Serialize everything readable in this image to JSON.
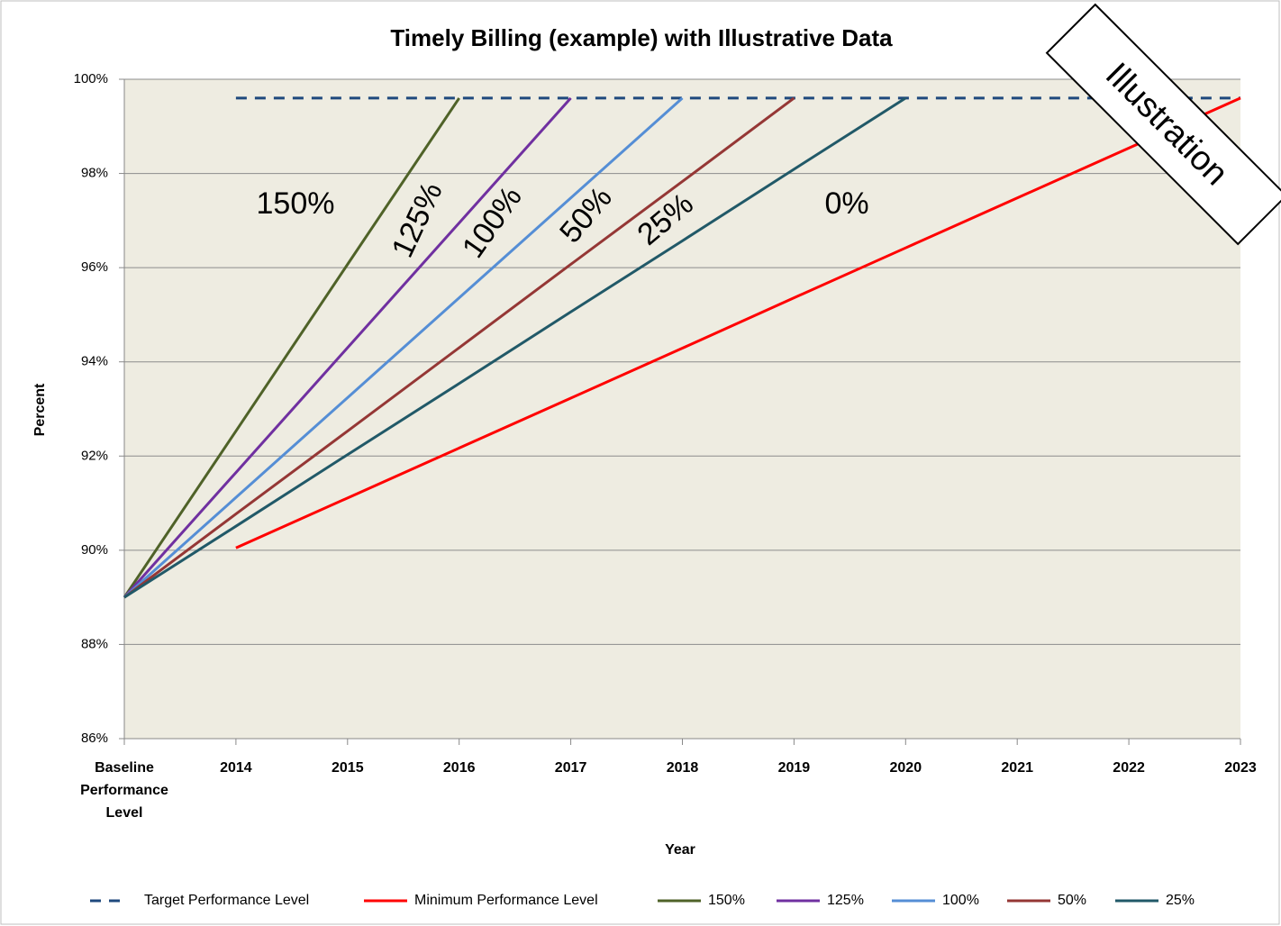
{
  "chart_data": {
    "type": "line",
    "title": "Timely Billing (example) with Illustrative Data",
    "xlabel": "Year",
    "ylabel": "Percent",
    "categories": [
      "Baseline Performance Level",
      "2014",
      "2015",
      "2016",
      "2017",
      "2018",
      "2019",
      "2020",
      "2021",
      "2022",
      "2023"
    ],
    "ylim": [
      86,
      100
    ],
    "yticks": [
      {
        "value": 86,
        "label": "86%"
      },
      {
        "value": 88,
        "label": "88%"
      },
      {
        "value": 90,
        "label": "90%"
      },
      {
        "value": 92,
        "label": "92%"
      },
      {
        "value": 94,
        "label": "94%"
      },
      {
        "value": 96,
        "label": "96%"
      },
      {
        "value": 98,
        "label": "98%"
      },
      {
        "value": 100,
        "label": "100%"
      }
    ],
    "grid": true,
    "legend": "bottom",
    "series": [
      {
        "name": "Target Performance Level",
        "color": "#1f497d",
        "dashed": true,
        "values": [
          null,
          99.6,
          99.6,
          99.6,
          99.6,
          99.6,
          99.6,
          99.6,
          99.6,
          99.6,
          99.6
        ]
      },
      {
        "name": "Minimum Performance Level",
        "color": "#ff0000",
        "values": [
          null,
          90.05,
          91.11,
          92.17,
          93.23,
          94.29,
          95.36,
          96.42,
          97.48,
          98.54,
          99.6
        ]
      },
      {
        "name": "150%",
        "color": "#4f6228",
        "values": [
          89,
          92.53,
          96.07,
          99.6,
          null,
          null,
          null,
          null,
          null,
          null,
          null
        ]
      },
      {
        "name": "125%",
        "color": "#7030a0",
        "values": [
          89,
          91.65,
          94.3,
          96.95,
          99.6,
          null,
          null,
          null,
          null,
          null,
          null
        ]
      },
      {
        "name": "100%",
        "color": "#558ed5",
        "values": [
          89,
          91.12,
          93.24,
          95.36,
          97.48,
          99.6,
          null,
          null,
          null,
          null,
          null
        ]
      },
      {
        "name": "50%",
        "color": "#953735",
        "values": [
          89,
          90.77,
          92.53,
          94.3,
          96.07,
          97.83,
          99.6,
          null,
          null,
          null,
          null
        ]
      },
      {
        "name": "25%",
        "color": "#215968",
        "values": [
          89,
          90.51,
          92.03,
          93.54,
          95.06,
          96.57,
          98.09,
          99.6,
          null,
          null,
          null
        ]
      }
    ],
    "annotations": [
      "150%",
      "125%",
      "100%",
      "50%",
      "25%",
      "0%",
      "Illustration"
    ]
  }
}
